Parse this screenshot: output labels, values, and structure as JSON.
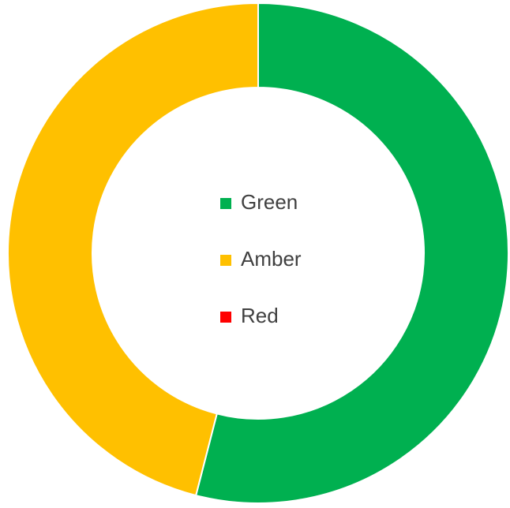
{
  "chart_data": {
    "type": "donut",
    "categories": [
      "Green",
      "Amber",
      "Red"
    ],
    "values": [
      54,
      46,
      0
    ],
    "colors": [
      "#00b050",
      "#ffc000",
      "#ff0000"
    ],
    "legend": "center"
  }
}
